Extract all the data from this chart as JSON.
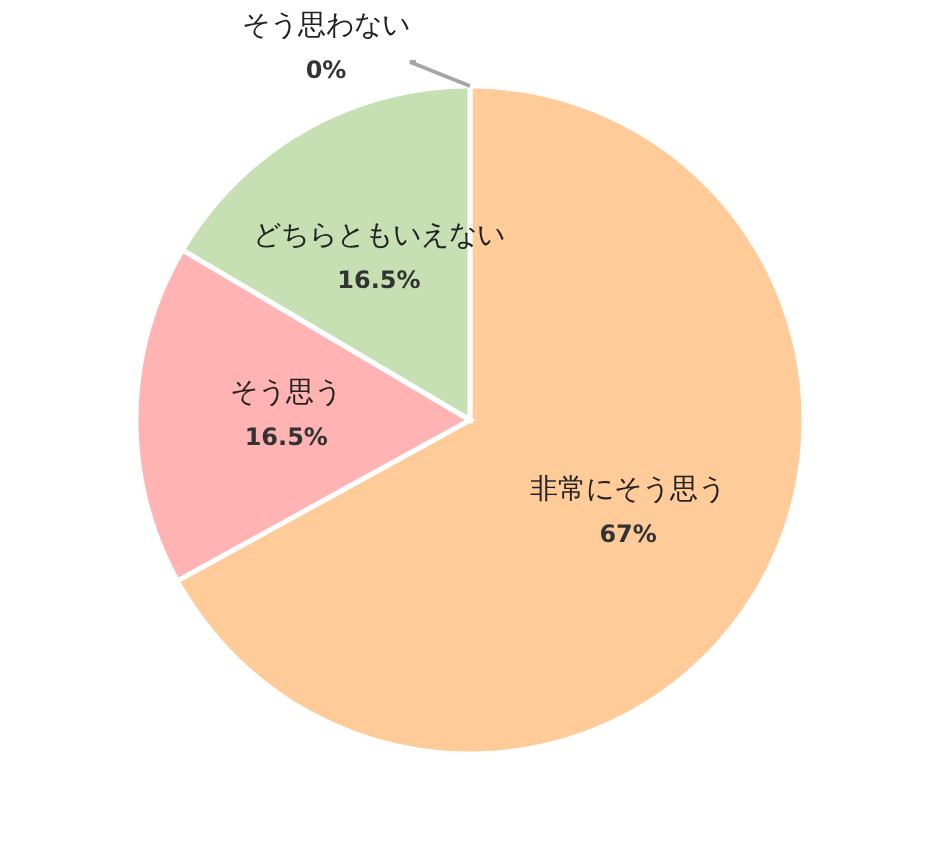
{
  "chart_data": {
    "type": "pie",
    "categories": [
      "非常にそう思う",
      "そう思う",
      "どちらともいえない",
      "そう思わない"
    ],
    "values": [
      67,
      16.5,
      16.5,
      0
    ],
    "value_labels": [
      "67%",
      "16.5%",
      "16.5%",
      "0%"
    ],
    "colors": [
      "#ffcc99",
      "#ffb3b3",
      "#c6e0b4",
      "#bdd7ee"
    ]
  }
}
